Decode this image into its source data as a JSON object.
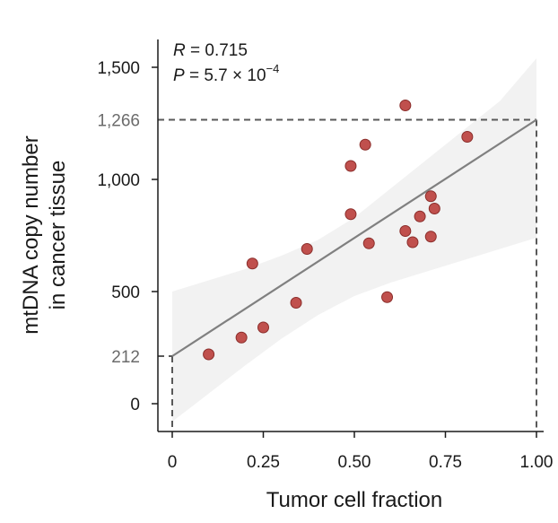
{
  "chart_data": {
    "type": "scatter",
    "title": "",
    "xlabel": "Tumor cell fraction",
    "ylabel_lines": [
      "mtDNA copy number",
      "in cancer tissue"
    ],
    "xlim": [
      -0.04,
      1.02
    ],
    "ylim": [
      -100,
      1620
    ],
    "x_ticks": [
      0,
      0.25,
      0.5,
      0.75,
      1.0
    ],
    "x_tick_labels": [
      "0",
      "0.25",
      "0.50",
      "0.75",
      "1.00"
    ],
    "y_ticks": [
      0,
      500,
      1000,
      1500
    ],
    "y_tick_labels": [
      "0",
      "500",
      "1,000",
      "1,500"
    ],
    "reference_lines": [
      {
        "y": 212,
        "label": "212",
        "x": 0
      },
      {
        "y": 1266,
        "label": "1,266",
        "x": 1.0
      }
    ],
    "stats": {
      "r_symbol": "R",
      "r_value": " = 0.715",
      "p_symbol": "P",
      "p_value": " = 5.7 × 10",
      "p_exponent": "−4"
    },
    "regression": {
      "x": [
        0,
        1.0
      ],
      "y": [
        212,
        1266
      ]
    },
    "confidence_band": {
      "x": [
        0,
        0.1,
        0.2,
        0.3,
        0.4,
        0.5,
        0.6,
        0.7,
        0.8,
        0.9,
        1.0
      ],
      "upper": [
        500,
        550,
        600,
        660,
        730,
        830,
        960,
        1090,
        1220,
        1350,
        1540
      ],
      "lower": [
        -80,
        45,
        170,
        290,
        395,
        480,
        540,
        590,
        640,
        690,
        740
      ]
    },
    "points": {
      "x": [
        0.1,
        0.19,
        0.22,
        0.25,
        0.34,
        0.37,
        0.49,
        0.49,
        0.53,
        0.54,
        0.59,
        0.64,
        0.64,
        0.66,
        0.68,
        0.71,
        0.71,
        0.72,
        0.81
      ],
      "y": [
        220,
        295,
        625,
        340,
        450,
        690,
        845,
        1060,
        1155,
        715,
        475,
        770,
        1330,
        720,
        835,
        925,
        745,
        870,
        1190
      ]
    },
    "colors": {
      "point_fill": "#c0504d",
      "point_stroke": "#8b2e2b",
      "regression": "#808080",
      "band": "#f2f2f2",
      "reference": "#595959",
      "axis": "#1a1a1a"
    }
  }
}
